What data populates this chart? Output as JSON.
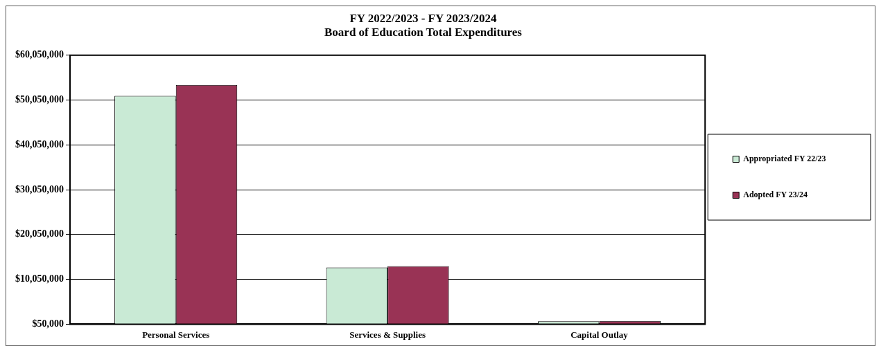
{
  "chart_data": {
    "type": "bar",
    "title": [
      "FY 2022/2023 - FY 2023/2024",
      "Board of Education Total Expenditures"
    ],
    "categories": [
      "Personal Services",
      "Services & Supplies",
      "Capital Outlay"
    ],
    "series": [
      {
        "name": "Appropriated FY 22/23",
        "color": "#c9ead5",
        "values": [
          51000000,
          12700000,
          700000
        ]
      },
      {
        "name": "Adopted FY 23/24",
        "color": "#993355",
        "values": [
          53400000,
          13000000,
          750000
        ]
      }
    ],
    "ylim": [
      50000,
      60050000
    ],
    "yticks": [
      {
        "value": 50000,
        "label": "$50,000"
      },
      {
        "value": 10050000,
        "label": "$10,050,000"
      },
      {
        "value": 20050000,
        "label": "$20,050,000"
      },
      {
        "value": 30050000,
        "label": "$30,050,000"
      },
      {
        "value": 40050000,
        "label": "$40,050,000"
      },
      {
        "value": 50050000,
        "label": "$50,050,000"
      },
      {
        "value": 60050000,
        "label": "$60,050,000"
      }
    ],
    "grid": "y",
    "legend": "right"
  }
}
